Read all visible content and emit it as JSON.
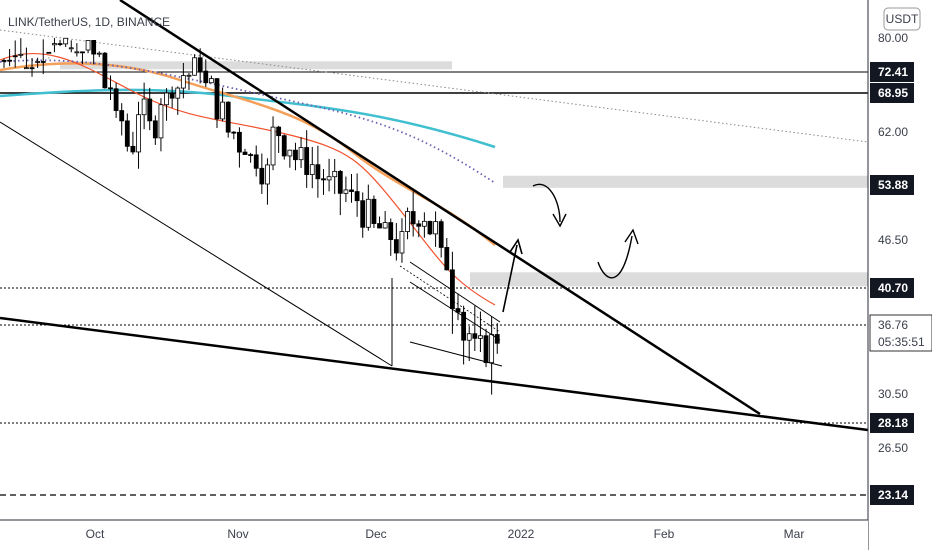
{
  "chart_data": {
    "type": "candlestick",
    "title": "LINK/TetherUS, 1D, BINANCE",
    "currency_label": "USDT",
    "y_ticks": [
      80.0,
      62.0,
      46.5,
      30.5,
      26.5
    ],
    "y_tick_labels": [
      "80.00",
      "62.00",
      "46.50",
      "30.50",
      "26.50"
    ],
    "x_ticks": [
      "Oct",
      "Nov",
      "Dec",
      "2022",
      "Feb",
      "Mar"
    ],
    "price_tags": [
      {
        "label": "72.41",
        "value": 72.41,
        "style": "dark"
      },
      {
        "label": "68.95",
        "value": 68.95,
        "style": "dark"
      },
      {
        "label": "53.88",
        "value": 53.88,
        "style": "dark"
      },
      {
        "label": "40.70",
        "value": 40.7,
        "style": "dark"
      },
      {
        "label": "28.18",
        "value": 28.18,
        "style": "dark"
      },
      {
        "label": "23.14",
        "value": 23.14,
        "style": "dark"
      }
    ],
    "current_price": {
      "label": "36.76",
      "countdown": "05:35:51",
      "value": 36.76
    },
    "zones": [
      {
        "from": 73.2,
        "to": 74.8
      },
      {
        "from": 53.5,
        "to": 55.3
      },
      {
        "from": 40.9,
        "to": 42.6
      }
    ],
    "candles_close_path": [
      85,
      84,
      86,
      85,
      80,
      78,
      82,
      79,
      76,
      70,
      64,
      60,
      66,
      63,
      68,
      70,
      72,
      74,
      70,
      66,
      62,
      60,
      58,
      56,
      62,
      60,
      58,
      57,
      55,
      54,
      53,
      52,
      50,
      48,
      47,
      46,
      49,
      50,
      48,
      44,
      40,
      36,
      34,
      35,
      36,
      37
    ]
  },
  "colors": {
    "up": "#ffffff",
    "down": "#000000",
    "ema_fast": "#f0522d",
    "ema_mid": "#f4a05a",
    "ema_slow": "#3fbfcf",
    "dotted_ma": "#6b5fb0",
    "tag_bg": "#131722",
    "zone": "#dcdcdc"
  }
}
